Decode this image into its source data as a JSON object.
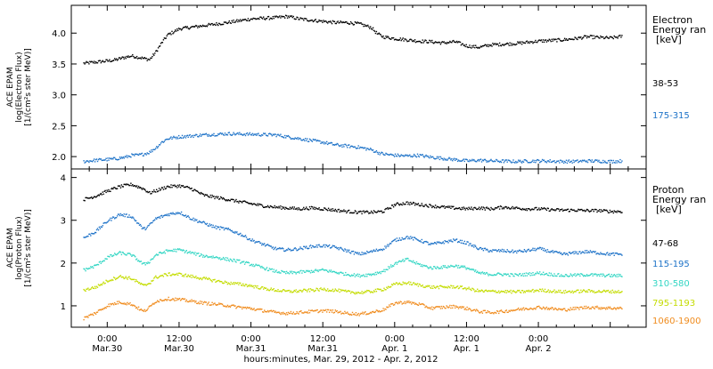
{
  "chart_data": [
    {
      "type": "scatter",
      "ylabel": [
        "ACE EPAM",
        "log(Electron Flux)",
        "[1/(cm²s ster MeV)]"
      ],
      "ylim": [
        1.8,
        4.45
      ],
      "yticks": [
        {
          "v": 2.0,
          "label": "2.0"
        },
        {
          "v": 2.5,
          "label": "2.5"
        },
        {
          "v": 3.0,
          "label": "3.0"
        },
        {
          "v": 3.5,
          "label": "3.5"
        },
        {
          "v": 4.0,
          "label": "4.0"
        }
      ],
      "legend_title": [
        "Electron",
        "Energy ran",
        "[keV]"
      ],
      "series": [
        {
          "name": "38-53",
          "color": "#000000",
          "x": [
            -4,
            -2,
            1,
            3,
            4,
            5,
            6,
            7,
            8,
            9,
            10,
            12,
            16,
            20,
            24,
            28,
            30,
            32,
            34,
            36,
            38,
            40,
            42,
            44,
            45,
            46,
            48,
            50,
            52,
            54,
            56,
            58,
            60,
            62,
            64,
            68,
            72,
            76,
            78,
            80,
            84,
            86
          ],
          "y": [
            3.52,
            3.54,
            3.57,
            3.62,
            3.64,
            3.62,
            3.6,
            3.58,
            3.7,
            3.85,
            3.98,
            4.08,
            4.13,
            4.18,
            4.24,
            4.26,
            4.28,
            4.24,
            4.22,
            4.2,
            4.18,
            4.18,
            4.16,
            4.1,
            4.0,
            3.95,
            3.92,
            3.9,
            3.88,
            3.87,
            3.85,
            3.87,
            3.8,
            3.78,
            3.82,
            3.84,
            3.88,
            3.9,
            3.92,
            3.95,
            3.93,
            3.96
          ]
        },
        {
          "name": "175-315",
          "color": "#1e73c8",
          "x": [
            -4,
            -2,
            1,
            3,
            4,
            5,
            6,
            7,
            8,
            9,
            10,
            12,
            16,
            20,
            24,
            28,
            30,
            32,
            34,
            36,
            38,
            40,
            42,
            44,
            45,
            46,
            48,
            50,
            52,
            54,
            56,
            58,
            60,
            62,
            64,
            68,
            72,
            76,
            78,
            80,
            84,
            86
          ],
          "y": [
            1.93,
            1.95,
            1.97,
            2.0,
            2.03,
            2.03,
            2.05,
            2.08,
            2.15,
            2.24,
            2.3,
            2.33,
            2.36,
            2.38,
            2.37,
            2.36,
            2.33,
            2.3,
            2.27,
            2.24,
            2.2,
            2.18,
            2.16,
            2.12,
            2.08,
            2.05,
            2.03,
            2.02,
            2.03,
            2.0,
            1.98,
            1.96,
            1.94,
            1.95,
            1.94,
            1.93,
            1.94,
            1.93,
            1.93,
            1.94,
            1.93,
            1.94
          ]
        }
      ]
    },
    {
      "type": "scatter",
      "ylabel": [
        "ACE EPAM",
        "log(Proton Flux)",
        "[1/(cm²s ster MeV)]"
      ],
      "ylim": [
        0.5,
        4.2
      ],
      "yticks": [
        {
          "v": 1,
          "label": "1"
        },
        {
          "v": 2,
          "label": "2"
        },
        {
          "v": 3,
          "label": "3"
        },
        {
          "v": 4,
          "label": "4"
        }
      ],
      "legend_title": [
        "Proton",
        "Energy ran",
        "[keV]"
      ],
      "series": [
        {
          "name": "47-68",
          "color": "#000000",
          "x": [
            -4,
            -2,
            0,
            2,
            4,
            6,
            7,
            8,
            10,
            12,
            14,
            16,
            18,
            20,
            22,
            24,
            26,
            28,
            30,
            32,
            34,
            36,
            38,
            40,
            42,
            44,
            46,
            48,
            50,
            52,
            54,
            56,
            58,
            60,
            62,
            64,
            66,
            68,
            70,
            72,
            74,
            76,
            78,
            80,
            82,
            84,
            86
          ],
          "y": [
            3.5,
            3.58,
            3.7,
            3.8,
            3.85,
            3.75,
            3.65,
            3.7,
            3.8,
            3.82,
            3.75,
            3.6,
            3.55,
            3.5,
            3.45,
            3.4,
            3.35,
            3.32,
            3.3,
            3.28,
            3.3,
            3.28,
            3.25,
            3.22,
            3.2,
            3.2,
            3.22,
            3.38,
            3.42,
            3.38,
            3.35,
            3.32,
            3.3,
            3.28,
            3.3,
            3.28,
            3.32,
            3.3,
            3.28,
            3.28,
            3.26,
            3.25,
            3.25,
            3.24,
            3.24,
            3.22,
            3.22
          ]
        },
        {
          "name": "115-195",
          "color": "#1e73c8",
          "x": [
            -4,
            -2,
            0,
            2,
            4,
            6,
            7,
            8,
            10,
            12,
            14,
            16,
            18,
            20,
            22,
            24,
            26,
            28,
            30,
            32,
            34,
            36,
            38,
            40,
            42,
            44,
            46,
            48,
            50,
            52,
            54,
            56,
            58,
            60,
            62,
            64,
            66,
            68,
            70,
            72,
            74,
            76,
            78,
            80,
            82,
            84,
            86
          ],
          "y": [
            2.6,
            2.75,
            3.0,
            3.15,
            3.1,
            2.8,
            2.9,
            3.05,
            3.15,
            3.2,
            3.05,
            2.95,
            2.85,
            2.8,
            2.7,
            2.55,
            2.45,
            2.35,
            2.32,
            2.35,
            2.4,
            2.42,
            2.38,
            2.3,
            2.22,
            2.28,
            2.35,
            2.55,
            2.62,
            2.55,
            2.45,
            2.5,
            2.55,
            2.48,
            2.35,
            2.3,
            2.3,
            2.28,
            2.3,
            2.35,
            2.28,
            2.22,
            2.25,
            2.28,
            2.25,
            2.22,
            2.22
          ]
        },
        {
          "name": "310-580",
          "color": "#33d6c4",
          "x": [
            -4,
            -2,
            0,
            2,
            4,
            6,
            7,
            8,
            10,
            12,
            14,
            16,
            18,
            20,
            22,
            24,
            26,
            28,
            30,
            32,
            34,
            36,
            38,
            40,
            42,
            44,
            46,
            48,
            50,
            52,
            54,
            56,
            58,
            60,
            62,
            64,
            66,
            68,
            70,
            72,
            74,
            76,
            78,
            80,
            82,
            84,
            86
          ],
          "y": [
            1.85,
            1.95,
            2.15,
            2.25,
            2.2,
            1.98,
            2.05,
            2.2,
            2.3,
            2.32,
            2.25,
            2.18,
            2.15,
            2.1,
            2.05,
            1.98,
            1.9,
            1.82,
            1.78,
            1.8,
            1.82,
            1.85,
            1.8,
            1.75,
            1.72,
            1.75,
            1.82,
            2.0,
            2.1,
            1.98,
            1.9,
            1.92,
            1.95,
            1.9,
            1.78,
            1.75,
            1.75,
            1.73,
            1.75,
            1.78,
            1.75,
            1.72,
            1.73,
            1.74,
            1.73,
            1.72,
            1.72
          ]
        },
        {
          "name": "795-1193",
          "color": "#c4dc00",
          "x": [
            -4,
            -2,
            0,
            2,
            4,
            6,
            7,
            8,
            10,
            12,
            14,
            16,
            18,
            20,
            22,
            24,
            26,
            28,
            30,
            32,
            34,
            36,
            38,
            40,
            42,
            44,
            46,
            48,
            50,
            52,
            54,
            56,
            58,
            60,
            62,
            64,
            66,
            68,
            70,
            72,
            74,
            76,
            78,
            80,
            82,
            84,
            86
          ],
          "y": [
            1.38,
            1.45,
            1.6,
            1.7,
            1.65,
            1.48,
            1.55,
            1.68,
            1.75,
            1.75,
            1.7,
            1.65,
            1.6,
            1.55,
            1.52,
            1.48,
            1.42,
            1.38,
            1.35,
            1.36,
            1.38,
            1.4,
            1.38,
            1.34,
            1.32,
            1.35,
            1.4,
            1.52,
            1.55,
            1.5,
            1.45,
            1.45,
            1.46,
            1.42,
            1.36,
            1.35,
            1.35,
            1.34,
            1.35,
            1.38,
            1.36,
            1.34,
            1.35,
            1.36,
            1.35,
            1.35,
            1.34
          ]
        },
        {
          "name": "1060-1900",
          "color": "#f08c1e",
          "x": [
            -4,
            -2,
            0,
            2,
            4,
            6,
            7,
            8,
            10,
            12,
            14,
            16,
            18,
            20,
            22,
            24,
            26,
            28,
            30,
            32,
            34,
            36,
            38,
            40,
            42,
            44,
            46,
            48,
            50,
            52,
            54,
            56,
            58,
            60,
            62,
            64,
            66,
            68,
            70,
            72,
            74,
            76,
            78,
            80,
            82,
            84,
            86
          ],
          "y": [
            0.72,
            0.85,
            1.02,
            1.1,
            1.05,
            0.88,
            0.98,
            1.12,
            1.18,
            1.16,
            1.12,
            1.08,
            1.05,
            1.02,
            0.98,
            0.95,
            0.9,
            0.86,
            0.84,
            0.86,
            0.88,
            0.9,
            0.88,
            0.84,
            0.82,
            0.86,
            0.92,
            1.08,
            1.1,
            1.05,
            0.96,
            0.98,
            1.0,
            0.95,
            0.88,
            0.86,
            0.88,
            0.92,
            0.95,
            0.98,
            0.95,
            0.92,
            0.95,
            0.98,
            0.97,
            0.96,
            0.96
          ]
        }
      ]
    }
  ],
  "x_axis": {
    "xlim": [
      -6,
      90
    ],
    "ticks": [
      {
        "v": 0,
        "line1": "0:00",
        "line2": "Mar.30"
      },
      {
        "v": 12,
        "line1": "12:00",
        "line2": "Mar.30"
      },
      {
        "v": 24,
        "line1": "0:00",
        "line2": "Mar.31"
      },
      {
        "v": 36,
        "line1": "12:00",
        "line2": "Mar.31"
      },
      {
        "v": 48,
        "line1": "0:00",
        "line2": "Apr. 1"
      },
      {
        "v": 60,
        "line1": "12:00",
        "line2": "Apr. 1"
      },
      {
        "v": 72,
        "line1": "0:00",
        "line2": "Apr. 2"
      }
    ],
    "xlabel": "hours:minutes, Mar. 29, 2012 - Apr. 2, 2012"
  }
}
